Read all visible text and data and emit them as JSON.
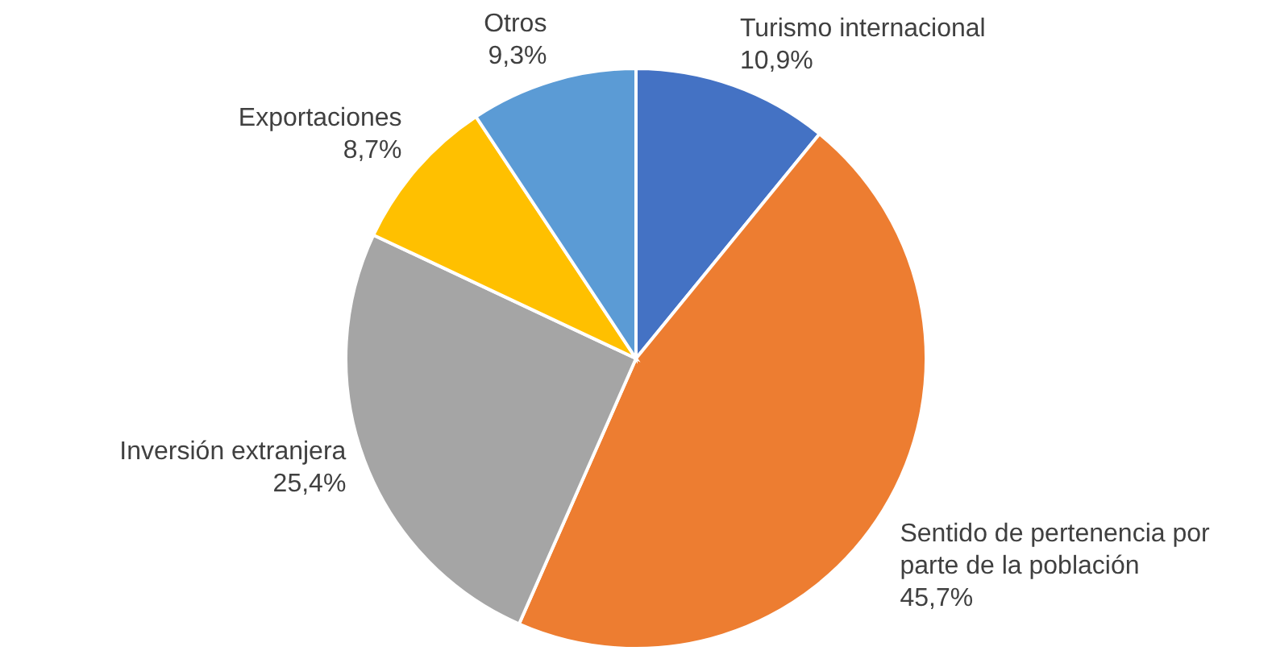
{
  "chart_data": {
    "type": "pie",
    "categories": [
      "Turismo internacional",
      "Sentido de pertenencia por parte de la población",
      "Inversión extranjera",
      "Exportaciones",
      "Otros"
    ],
    "values": [
      10.9,
      45.7,
      25.4,
      8.7,
      9.3
    ],
    "value_labels": [
      "10,9%",
      "45,7%",
      "25,4%",
      "8,7%",
      "9,3%"
    ],
    "colors": [
      "#4472c4",
      "#ed7d31",
      "#a5a5a5",
      "#ffc000",
      "#5b9bd5"
    ]
  }
}
